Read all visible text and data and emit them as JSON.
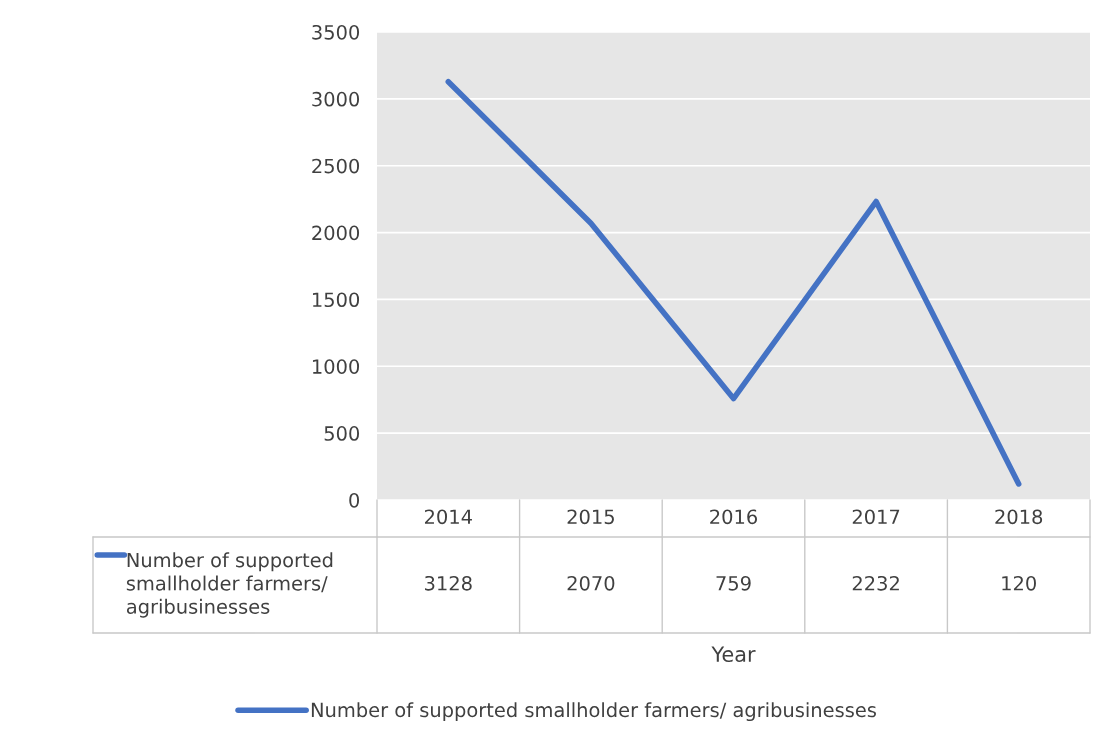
{
  "chart_data": {
    "type": "line",
    "categories": [
      "2014",
      "2015",
      "2016",
      "2017",
      "2018"
    ],
    "series": [
      {
        "name": "Number of supported smallholder farmers/ agribusinesses",
        "color": "#4472c4",
        "values": [
          3128,
          2070,
          759,
          2232,
          120
        ]
      }
    ],
    "annotations": [
      "Year"
    ],
    "ylim": [
      0,
      3500
    ],
    "yticks": [
      0,
      500,
      1000,
      1500,
      2000,
      2500,
      3000,
      3500
    ],
    "grid": "y",
    "legend": "bottom",
    "data_labels": true,
    "marker": "none",
    "line_style": "solid"
  }
}
